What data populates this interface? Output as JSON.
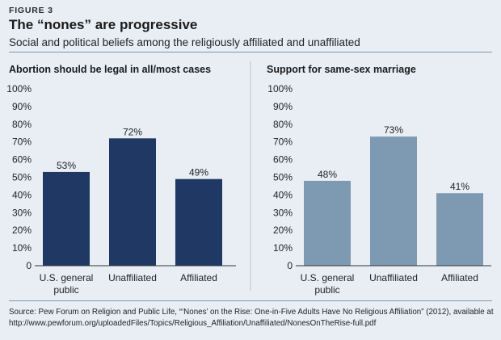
{
  "figure_label": "FIGURE 3",
  "title": "The “nones” are progressive",
  "subtitle": "Social and political beliefs among the religiously affiliated and unaffiliated",
  "source_line1": "Source: Pew Forum on Religion and Public Life, “‘Nones’ on the Rise: One-in-Five Adults Have No Religious Affiliation” (2012), available at",
  "source_line2": "http://www.pewforum.org/uploadedFiles/Topics/Religious_Affiliation/Unaffiliated/NonesOnTheRise-full.pdf",
  "colors": {
    "background": "#e9eef5",
    "series_left": "#1f3864",
    "series_right": "#7e9ab3",
    "axis": "#333333",
    "divider": "#7f94ab"
  },
  "chart_data": [
    {
      "type": "bar",
      "title": "Abortion should be legal in all/most cases",
      "categories": [
        "U.S. general public",
        "Unaffiliated",
        "Affiliated"
      ],
      "category_lines": [
        [
          "U.S. general",
          "public"
        ],
        [
          "Unaffiliated"
        ],
        [
          "Affiliated"
        ]
      ],
      "values": [
        53,
        72,
        49
      ],
      "data_labels": [
        "53%",
        "72%",
        "49%"
      ],
      "ylim": [
        0,
        100
      ],
      "yticks": [
        0,
        10,
        20,
        30,
        40,
        50,
        60,
        70,
        80,
        90,
        100
      ],
      "ytick_labels": [
        "0",
        "10%",
        "20%",
        "30%",
        "40%",
        "50%",
        "60%",
        "70%",
        "80%",
        "90%",
        "100%"
      ],
      "xlabel": "",
      "ylabel": "",
      "grid": false,
      "color": "#1f3864"
    },
    {
      "type": "bar",
      "title": "Support for same-sex marriage",
      "categories": [
        "U.S. general public",
        "Unaffiliated",
        "Affiliated"
      ],
      "category_lines": [
        [
          "U.S. general",
          "public"
        ],
        [
          "Unaffiliated"
        ],
        [
          "Affiliated"
        ]
      ],
      "values": [
        48,
        73,
        41
      ],
      "data_labels": [
        "48%",
        "73%",
        "41%"
      ],
      "ylim": [
        0,
        100
      ],
      "yticks": [
        0,
        10,
        20,
        30,
        40,
        50,
        60,
        70,
        80,
        90,
        100
      ],
      "ytick_labels": [
        "0",
        "10%",
        "20%",
        "30%",
        "40%",
        "50%",
        "60%",
        "70%",
        "80%",
        "90%",
        "100%"
      ],
      "xlabel": "",
      "ylabel": "",
      "grid": false,
      "color": "#7e9ab3"
    }
  ]
}
